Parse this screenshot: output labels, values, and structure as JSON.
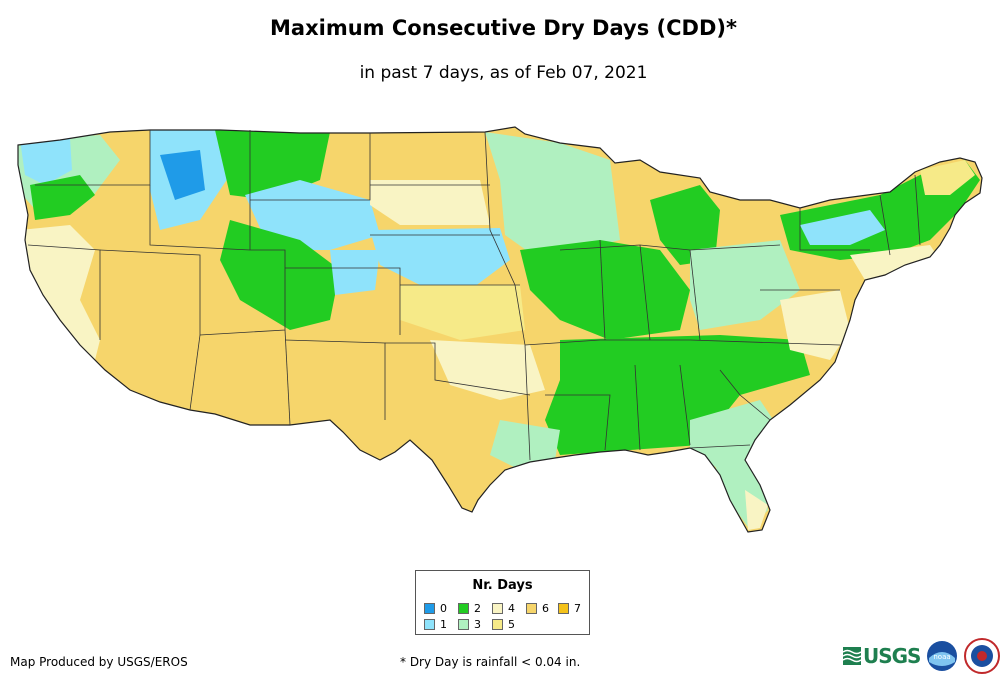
{
  "title": "Maximum Consecutive Dry Days (CDD)*",
  "subtitle": "in past 7 days, as of Feb 07, 2021",
  "legend": {
    "title": "Nr. Days",
    "items": [
      {
        "label": "0",
        "color": "#1f9be8"
      },
      {
        "label": "1",
        "color": "#8fe3fb"
      },
      {
        "label": "2",
        "color": "#22cc22"
      },
      {
        "label": "3",
        "color": "#b0f0c0"
      },
      {
        "label": "4",
        "color": "#f9f4c4"
      },
      {
        "label": "5",
        "color": "#f6ea88"
      },
      {
        "label": "6",
        "color": "#f6d56b"
      },
      {
        "label": "7",
        "color": "#f4c21a"
      }
    ]
  },
  "footer": {
    "produced_by": "Map Produced by USGS/EROS",
    "note": "* Dry Day is rainfall < 0.04 in."
  },
  "logos": {
    "usgs": "USGS",
    "noaa": "noaa"
  }
}
